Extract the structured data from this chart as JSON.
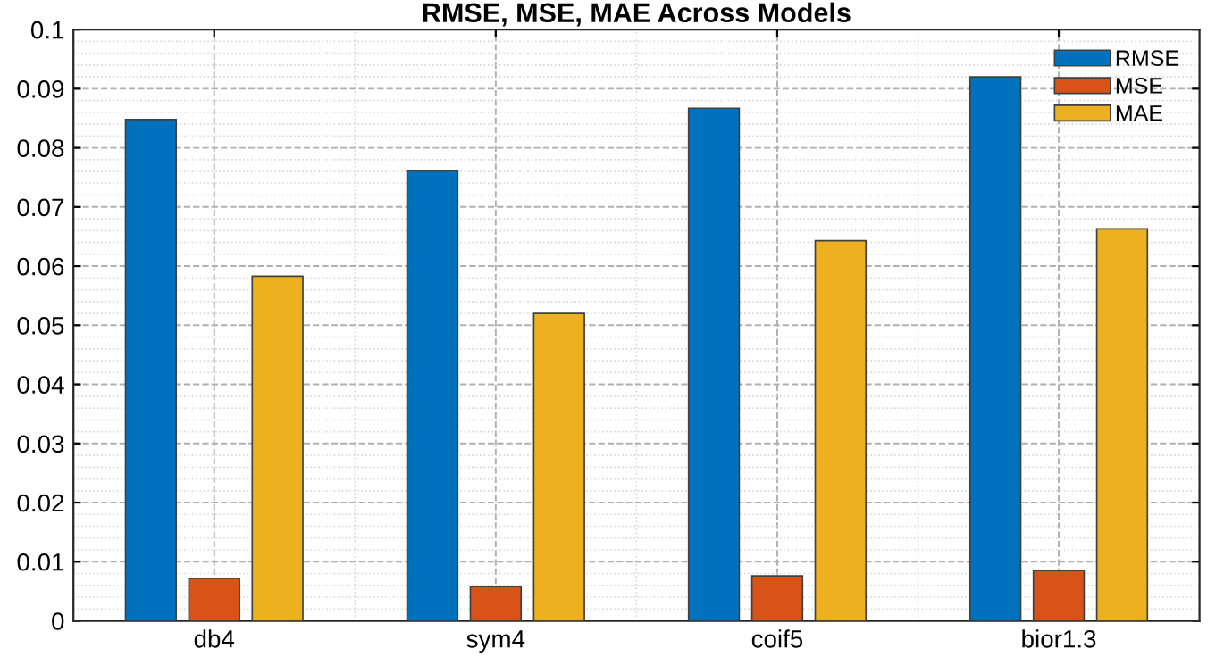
{
  "chart_data": {
    "type": "bar",
    "title": "RMSE, MSE, MAE Across Models",
    "categories": [
      "db4",
      "sym4",
      "coif5",
      "bior1.3"
    ],
    "series": [
      {
        "name": "RMSE",
        "color": "#0072bd",
        "values": [
          0.0848,
          0.0761,
          0.0867,
          0.092
        ]
      },
      {
        "name": "MSE",
        "color": "#d95319",
        "values": [
          0.0072,
          0.0058,
          0.0076,
          0.0085
        ]
      },
      {
        "name": "MAE",
        "color": "#edb120",
        "values": [
          0.0583,
          0.052,
          0.0643,
          0.0663
        ]
      }
    ],
    "ylim": [
      0,
      0.1
    ],
    "yticks": [
      0,
      0.01,
      0.02,
      0.03,
      0.04,
      0.05,
      0.06,
      0.07,
      0.08,
      0.09,
      0.1
    ],
    "grid": true,
    "legend": "top right"
  }
}
